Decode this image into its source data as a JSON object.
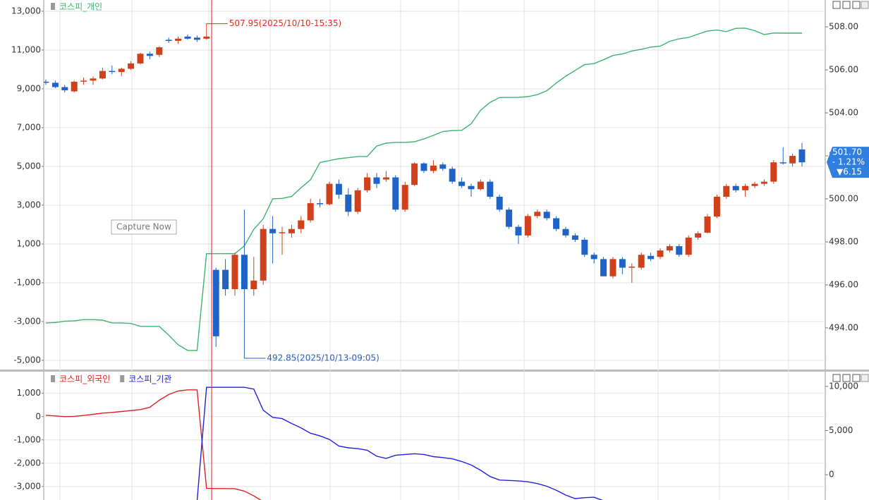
{
  "chart_data": [
    {
      "type": "candlestick",
      "up_color": "#d0401b",
      "down_color": "#1f63c6",
      "series": [
        {
          "name": "코스피_개인",
          "color": "#3cb46e",
          "axis": "y",
          "values": [
            -3070,
            -3050,
            -2980,
            -2960,
            -2900,
            -2900,
            -2930,
            -3070,
            -3070,
            -3100,
            -3250,
            -3250,
            -3250,
            -3700,
            -4200,
            -4490,
            -4490,
            500,
            500,
            500,
            500,
            900,
            1760,
            2300,
            3330,
            3350,
            3450,
            3900,
            4310,
            5200,
            5300,
            5400,
            5450,
            5510,
            5510,
            6050,
            6200,
            6240,
            6240,
            6270,
            6420,
            6600,
            6800,
            6850,
            6860,
            7200,
            7900,
            8300,
            8550,
            8560,
            8560,
            8600,
            8700,
            8900,
            9300,
            9650,
            9950,
            10250,
            10300,
            10500,
            10720,
            10800,
            10950,
            11040,
            11150,
            11200,
            11450,
            11580,
            11650,
            11820,
            11980,
            12030,
            11950,
            12120,
            12130,
            12000,
            11800,
            11880,
            11870,
            11870,
            11870
          ]
        }
      ],
      "candles": [
        [
          505.45,
          505.55,
          505.3,
          505.4
        ],
        [
          505.4,
          505.5,
          505.15,
          505.2
        ],
        [
          505.2,
          505.3,
          504.95,
          505.05
        ],
        [
          505.0,
          505.5,
          504.95,
          505.45
        ],
        [
          505.45,
          505.65,
          505.3,
          505.5
        ],
        [
          505.5,
          505.7,
          505.3,
          505.6
        ],
        [
          505.6,
          506.1,
          505.55,
          505.95
        ],
        [
          505.95,
          506.2,
          505.8,
          505.9
        ],
        [
          505.9,
          506.1,
          505.7,
          506.05
        ],
        [
          506.05,
          506.4,
          506.0,
          506.3
        ],
        [
          506.3,
          506.8,
          506.25,
          506.75
        ],
        [
          506.75,
          506.85,
          506.5,
          506.65
        ],
        [
          506.7,
          507.1,
          506.6,
          507.05
        ],
        [
          507.4,
          507.5,
          507.25,
          507.35
        ],
        [
          507.35,
          507.55,
          507.2,
          507.45
        ],
        [
          507.55,
          507.65,
          507.4,
          507.45
        ],
        [
          507.5,
          507.6,
          507.3,
          507.4
        ],
        [
          507.45,
          507.95,
          507.4,
          507.55
        ],
        [
          496.7,
          496.8,
          493.12,
          493.61
        ],
        [
          496.7,
          497.2,
          495.5,
          495.8
        ],
        [
          495.8,
          497.5,
          495.5,
          497.4
        ],
        [
          497.4,
          499.5,
          492.85,
          495.8
        ],
        [
          495.8,
          497.3,
          495.5,
          496.2
        ],
        [
          496.2,
          498.8,
          496.0,
          498.6
        ],
        [
          498.6,
          499.2,
          497.0,
          498.4
        ],
        [
          498.4,
          498.7,
          497.4,
          498.45
        ],
        [
          498.4,
          498.8,
          498.2,
          498.6
        ],
        [
          498.6,
          499.2,
          498.4,
          499.0
        ],
        [
          499.0,
          500.0,
          498.9,
          499.8
        ],
        [
          499.8,
          500.0,
          499.6,
          499.75
        ],
        [
          499.75,
          500.8,
          499.7,
          500.7
        ],
        [
          500.7,
          500.9,
          500.0,
          500.2
        ],
        [
          500.2,
          500.5,
          499.2,
          499.4
        ],
        [
          499.4,
          500.5,
          499.3,
          500.4
        ],
        [
          500.4,
          501.2,
          500.3,
          501.0
        ],
        [
          501.0,
          501.2,
          500.5,
          500.7
        ],
        [
          500.9,
          501.3,
          500.8,
          501.0
        ],
        [
          501.0,
          501.1,
          499.4,
          499.5
        ],
        [
          499.5,
          500.8,
          499.4,
          500.65
        ],
        [
          500.65,
          501.7,
          500.6,
          501.65
        ],
        [
          501.65,
          501.7,
          501.2,
          501.3
        ],
        [
          501.3,
          501.8,
          501.2,
          501.55
        ],
        [
          501.6,
          501.7,
          501.3,
          501.4
        ],
        [
          501.4,
          501.5,
          500.7,
          500.8
        ],
        [
          500.8,
          501.0,
          500.5,
          500.6
        ],
        [
          500.6,
          500.7,
          500.1,
          500.45
        ],
        [
          500.45,
          500.9,
          500.4,
          500.8
        ],
        [
          500.8,
          500.9,
          500.0,
          500.1
        ],
        [
          500.1,
          500.2,
          499.4,
          499.5
        ],
        [
          499.5,
          499.6,
          498.6,
          498.7
        ],
        [
          498.7,
          498.8,
          497.9,
          498.3
        ],
        [
          498.3,
          499.3,
          498.2,
          499.2
        ],
        [
          499.2,
          499.5,
          499.1,
          499.4
        ],
        [
          499.4,
          499.5,
          499.0,
          499.1
        ],
        [
          499.1,
          499.2,
          498.5,
          498.6
        ],
        [
          498.6,
          498.7,
          498.2,
          498.3
        ],
        [
          498.3,
          498.4,
          498.0,
          498.1
        ],
        [
          498.1,
          498.2,
          497.3,
          497.4
        ],
        [
          497.4,
          497.5,
          497.0,
          497.2
        ],
        [
          497.2,
          497.3,
          496.4,
          496.4
        ],
        [
          496.4,
          497.3,
          496.3,
          497.2
        ],
        [
          497.2,
          497.3,
          496.5,
          496.8
        ],
        [
          496.8,
          497.0,
          496.1,
          496.85
        ],
        [
          496.8,
          497.5,
          496.7,
          497.4
        ],
        [
          497.35,
          497.5,
          497.1,
          497.2
        ],
        [
          497.3,
          497.7,
          497.2,
          497.6
        ],
        [
          497.6,
          497.9,
          497.5,
          497.8
        ],
        [
          497.8,
          497.9,
          497.3,
          497.4
        ],
        [
          497.4,
          498.3,
          497.3,
          498.2
        ],
        [
          498.2,
          498.5,
          498.1,
          498.4
        ],
        [
          498.43,
          499.3,
          498.4,
          499.18
        ],
        [
          499.18,
          500.2,
          499.1,
          500.1
        ],
        [
          500.1,
          500.7,
          500.0,
          500.6
        ],
        [
          500.6,
          500.7,
          500.3,
          500.4
        ],
        [
          500.4,
          500.7,
          500.1,
          500.6
        ],
        [
          500.6,
          500.8,
          500.5,
          500.7
        ],
        [
          500.7,
          500.9,
          500.6,
          500.8
        ],
        [
          500.8,
          501.8,
          500.7,
          501.7
        ],
        [
          501.7,
          502.4,
          501.6,
          501.65
        ],
        [
          501.65,
          502.1,
          501.5,
          502.0
        ],
        [
          502.3,
          502.6,
          501.5,
          501.7
        ]
      ],
      "ylim": [
        -5510,
        13580
      ],
      "yticks": [
        {
          "value": -5000,
          "label": "-5,000"
        },
        {
          "value": -3000,
          "label": "-3,000"
        },
        {
          "value": -1000,
          "label": "-1,000"
        },
        {
          "value": 1000,
          "label": "1,000"
        },
        {
          "value": 3000,
          "label": "3,000"
        },
        {
          "value": 5000,
          "label": "5,000"
        },
        {
          "value": 7000,
          "label": "7,000"
        },
        {
          "value": 9000,
          "label": "9,000"
        },
        {
          "value": 11000,
          "label": "11,000"
        },
        {
          "value": 13000,
          "label": "13,000"
        }
      ],
      "y2lim": [
        492.03,
        509.25
      ],
      "y2ticks": [
        {
          "value": 494,
          "label": "494.00"
        },
        {
          "value": 496,
          "label": "496.00"
        },
        {
          "value": 498,
          "label": "498.00"
        },
        {
          "value": 500,
          "label": "500.00"
        },
        {
          "value": 502,
          "label": "502.00"
        },
        {
          "value": 504,
          "label": "504.00"
        },
        {
          "value": 506,
          "label": "506.00"
        },
        {
          "value": 508,
          "label": "508.00"
        }
      ],
      "grid": true,
      "annotations": [
        {
          "value": 507.95,
          "label": "507.95(2025/10/10-15:35)",
          "color": "#e0301e"
        },
        {
          "value": 492.85,
          "label": "492.85(2025/10/13-09:05)",
          "color": "#2a5fbf"
        }
      ],
      "last_price": {
        "value": 501.7,
        "label": "501.70",
        "change_pct": "- 1.21%",
        "change": "▼6.15",
        "color": "#2f7fe0"
      },
      "tooltip": "Capture Now"
    },
    {
      "type": "line",
      "series": [
        {
          "name": "코스피_외국인",
          "color": "#e02020",
          "axis": "y",
          "values": [
            60,
            30,
            0,
            10,
            50,
            100,
            150,
            180,
            220,
            260,
            300,
            400,
            700,
            950,
            1100,
            1150,
            1150,
            -3080,
            -3090,
            -3090,
            -3100,
            -3200,
            -3400,
            -3650,
            null,
            null,
            null,
            null,
            null,
            null,
            null,
            null,
            null,
            null,
            null,
            null,
            null,
            null,
            null,
            null,
            null,
            null,
            null,
            null,
            null,
            null,
            null,
            null,
            null,
            null,
            null,
            null,
            null,
            null,
            null,
            null,
            null,
            null,
            null,
            null,
            null,
            null,
            null,
            null,
            null,
            null,
            null,
            null,
            null,
            null,
            null,
            null,
            null,
            null,
            null,
            null,
            null,
            null,
            null,
            null,
            null
          ]
        },
        {
          "name": "코스피_기관",
          "color": "#2020e0",
          "axis": "y2",
          "values": [
            null,
            null,
            null,
            null,
            null,
            null,
            null,
            null,
            null,
            null,
            null,
            null,
            null,
            null,
            null,
            null,
            -3000,
            9900,
            9900,
            9900,
            9900,
            9900,
            9700,
            7300,
            6500,
            6350,
            5800,
            5300,
            4700,
            4400,
            4000,
            3250,
            3050,
            2950,
            2780,
            2100,
            1850,
            2200,
            2300,
            2380,
            2300,
            2050,
            1950,
            1800,
            1500,
            1100,
            500,
            -200,
            -600,
            -650,
            -700,
            -800,
            -1000,
            -1300,
            -1750,
            -2300,
            -2700,
            -2600,
            -2550,
            -2950,
            null,
            null,
            null,
            null,
            null,
            null,
            null,
            null,
            null,
            null,
            null,
            null,
            null,
            null,
            null,
            null,
            null,
            null,
            null,
            null,
            null
          ]
        }
      ],
      "ylim": [
        -3580,
        1900
      ],
      "yticks": [
        {
          "value": -3000,
          "label": "-3,000"
        },
        {
          "value": -2000,
          "label": "-2,000"
        },
        {
          "value": -1000,
          "label": "-1,000"
        },
        0,
        {
          "value": 1000,
          "label": "1,000"
        }
      ],
      "y2lim": [
        -2860,
        11590
      ],
      "y2ticks": [
        0,
        {
          "value": 5000,
          "label": "5,000"
        },
        {
          "value": 10000,
          "label": "10,000"
        }
      ],
      "grid": true
    }
  ]
}
